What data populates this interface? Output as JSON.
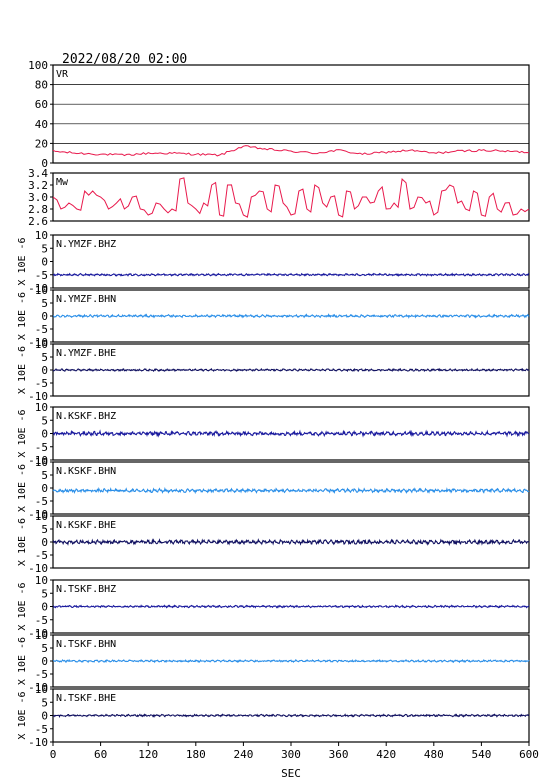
{
  "title": "2022/08/20 02:00",
  "x_axis": {
    "label": "SEC",
    "ticks": [
      "0",
      "60",
      "120",
      "180",
      "240",
      "300",
      "360",
      "420",
      "480",
      "540",
      "600"
    ]
  },
  "colors": {
    "vr": "#e8194c",
    "mw": "#e8194c",
    "trace_dark": "#1a1a9e",
    "trace_light": "#2b8fe8",
    "trace_navy": "#101060"
  },
  "chart_data": [
    {
      "type": "line",
      "name": "VR",
      "xlim": [
        0,
        600
      ],
      "ylim": [
        0,
        100
      ],
      "yticks": [
        "100",
        "80",
        "60",
        "40",
        "20",
        "0"
      ],
      "grid": true,
      "x": [
        0,
        30,
        60,
        90,
        120,
        150,
        180,
        210,
        240,
        270,
        300,
        330,
        360,
        390,
        420,
        450,
        480,
        510,
        540,
        570,
        600
      ],
      "values": [
        12,
        10,
        9,
        8,
        10,
        10,
        9,
        8,
        17,
        14,
        12,
        10,
        13,
        9,
        11,
        13,
        10,
        12,
        13,
        12,
        11
      ]
    },
    {
      "type": "line",
      "name": "Mw",
      "xlim": [
        0,
        600
      ],
      "ylim": [
        2.6,
        3.4
      ],
      "yticks": [
        "3.4",
        "3.2",
        "3.0",
        "2.8",
        "2.6"
      ],
      "x": [
        0,
        10,
        20,
        30,
        40,
        50,
        60,
        70,
        80,
        90,
        100,
        110,
        120,
        130,
        140,
        150,
        160,
        170,
        180,
        190,
        200,
        210,
        220,
        230,
        240,
        250,
        260,
        270,
        280,
        290,
        300,
        310,
        320,
        330,
        340,
        350,
        360,
        370,
        380,
        390,
        400,
        410,
        420,
        430,
        440,
        450,
        460,
        470,
        480,
        490,
        500,
        510,
        520,
        530,
        540,
        550,
        560,
        570,
        580,
        590,
        600
      ],
      "values": [
        3.0,
        2.8,
        2.9,
        2.8,
        3.1,
        3.1,
        3.0,
        2.8,
        2.9,
        2.8,
        3.0,
        2.8,
        2.7,
        2.9,
        2.8,
        2.8,
        3.3,
        2.9,
        2.8,
        2.9,
        3.2,
        2.7,
        3.2,
        2.9,
        2.7,
        3.0,
        3.1,
        2.8,
        3.2,
        2.9,
        2.7,
        3.1,
        2.8,
        3.2,
        2.9,
        3.0,
        2.7,
        3.1,
        2.8,
        3.0,
        2.9,
        3.1,
        2.8,
        2.9,
        3.3,
        2.8,
        3.0,
        2.9,
        2.7,
        3.1,
        3.2,
        2.9,
        2.8,
        3.1,
        2.7,
        3.0,
        2.8,
        2.9,
        2.7,
        2.8,
        2.8
      ]
    },
    {
      "type": "line",
      "name": "N.YMZF.BHZ",
      "ylabel": "X 10E -6",
      "xlim": [
        0,
        600
      ],
      "ylim": [
        -10,
        10
      ],
      "yticks": [
        "10",
        "5",
        "0",
        "-5",
        "-10"
      ],
      "baseline": -5,
      "amplitude": 0.5,
      "color": "trace_dark"
    },
    {
      "type": "line",
      "name": "N.YMZF.BHN",
      "ylabel": "X 10E -6",
      "xlim": [
        0,
        600
      ],
      "ylim": [
        -10,
        10
      ],
      "yticks": [
        "10",
        "5",
        "0",
        "-5",
        "-10"
      ],
      "baseline": 0,
      "amplitude": 0.6,
      "color": "trace_light"
    },
    {
      "type": "line",
      "name": "N.YMZF.BHE",
      "ylabel": "X 10E -6",
      "xlim": [
        0,
        600
      ],
      "ylim": [
        -10,
        10
      ],
      "yticks": [
        "10",
        "5",
        "0",
        "-5",
        "-10"
      ],
      "baseline": 0,
      "amplitude": 0.5,
      "color": "trace_navy"
    },
    {
      "type": "line",
      "name": "N.KSKF.BHZ",
      "ylabel": "X 10E -6",
      "xlim": [
        0,
        600
      ],
      "ylim": [
        -10,
        10
      ],
      "yticks": [
        "10",
        "5",
        "0",
        "-5",
        "-10"
      ],
      "baseline": 0,
      "amplitude": 1.0,
      "color": "trace_dark"
    },
    {
      "type": "line",
      "name": "N.KSKF.BHN",
      "ylabel": "X 10E -6",
      "xlim": [
        0,
        600
      ],
      "ylim": [
        -10,
        10
      ],
      "yticks": [
        "10",
        "5",
        "0",
        "-5",
        "-10"
      ],
      "baseline": -1,
      "amplitude": 0.9,
      "color": "trace_light"
    },
    {
      "type": "line",
      "name": "N.KSKF.BHE",
      "ylabel": "X 10E -6",
      "xlim": [
        0,
        600
      ],
      "ylim": [
        -10,
        10
      ],
      "yticks": [
        "10",
        "5",
        "0",
        "-5",
        "-10"
      ],
      "baseline": 0,
      "amplitude": 1.0,
      "color": "trace_navy"
    },
    {
      "type": "line",
      "name": "N.TSKF.BHZ",
      "ylabel": "X 10E -6",
      "xlim": [
        0,
        600
      ],
      "ylim": [
        -10,
        10
      ],
      "yticks": [
        "10",
        "5",
        "0",
        "-5",
        "-10"
      ],
      "baseline": 0,
      "amplitude": 0.5,
      "color": "trace_dark"
    },
    {
      "type": "line",
      "name": "N.TSKF.BHN",
      "ylabel": "X 10E -6",
      "xlim": [
        0,
        600
      ],
      "ylim": [
        -10,
        10
      ],
      "yticks": [
        "10",
        "5",
        "0",
        "-5",
        "-10"
      ],
      "baseline": 0,
      "amplitude": 0.5,
      "color": "trace_light"
    },
    {
      "type": "line",
      "name": "N.TSKF.BHE",
      "ylabel": "X 10E -6",
      "xlim": [
        0,
        600
      ],
      "ylim": [
        -10,
        10
      ],
      "yticks": [
        "10",
        "5",
        "0",
        "-5",
        "-10"
      ],
      "baseline": 0,
      "amplitude": 0.5,
      "color": "trace_navy"
    }
  ]
}
